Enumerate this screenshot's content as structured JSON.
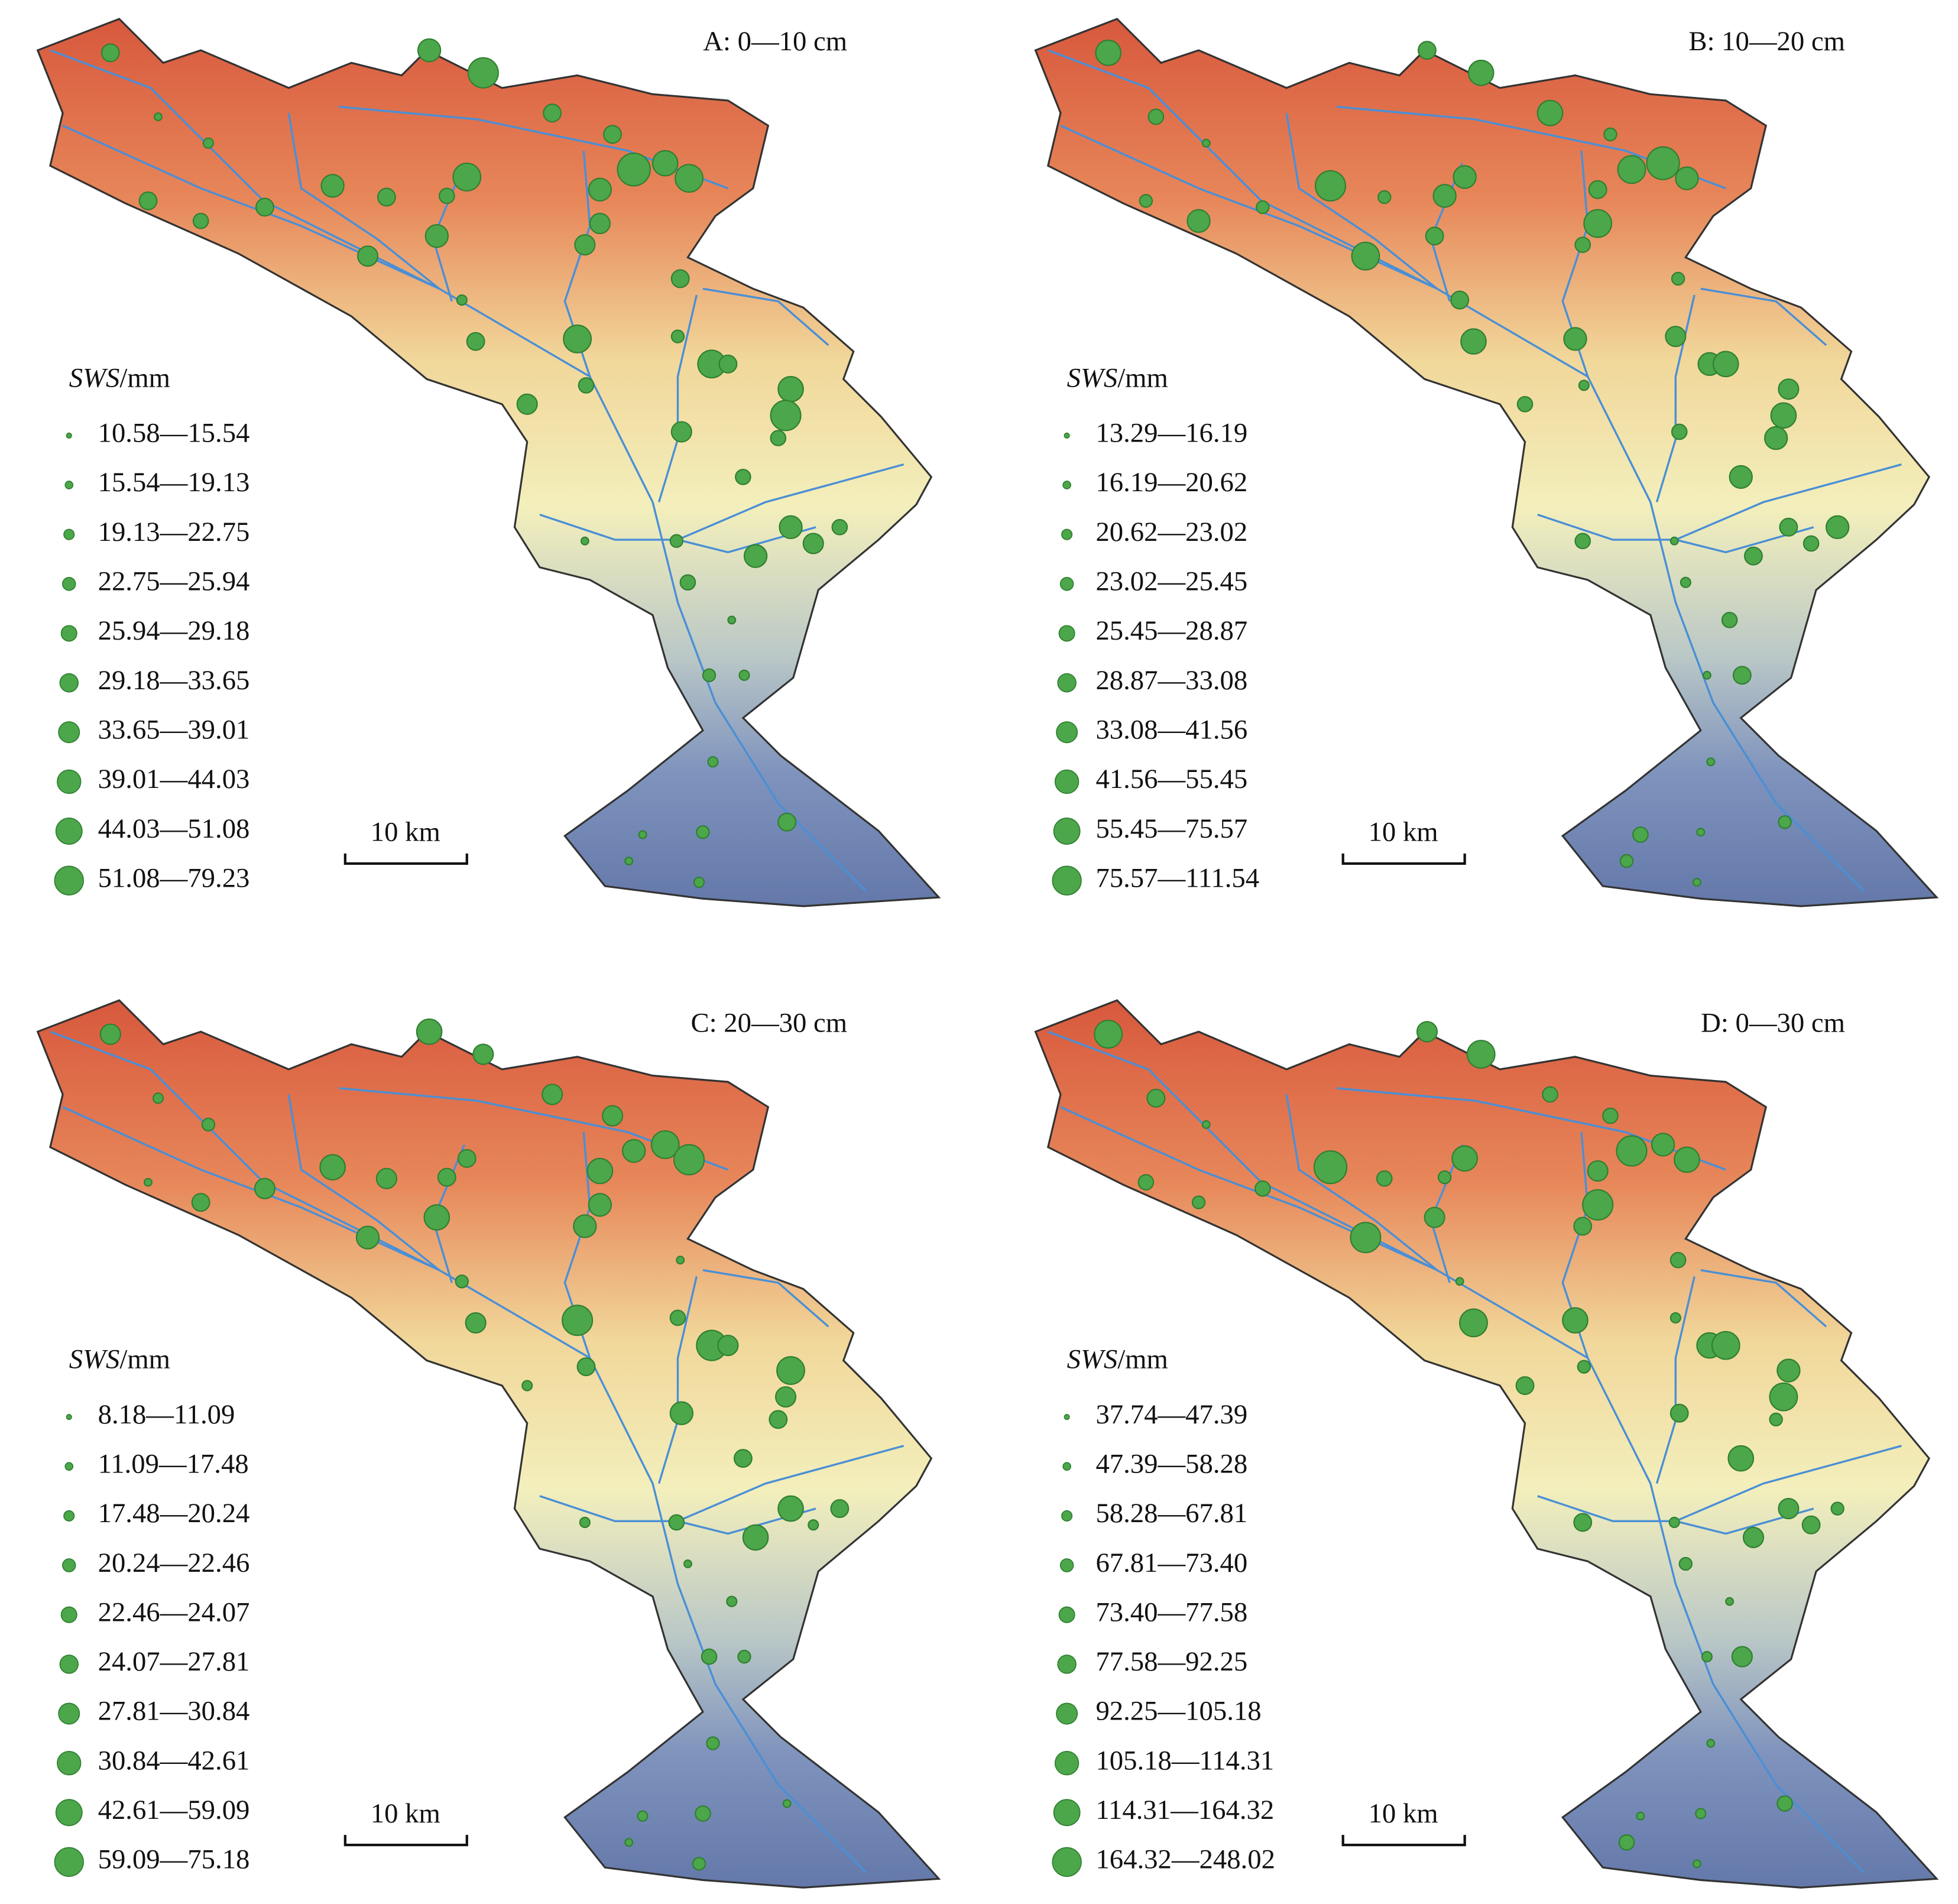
{
  "panels": [
    {
      "title": "A: 0—10 cm",
      "legend_title": [
        "SWS",
        "/mm"
      ],
      "scale_bar": "10 km",
      "classes": [
        "10.58—15.54",
        "15.54—19.13",
        "19.13—22.75",
        "22.75—25.94",
        "25.94—29.18",
        "29.18—33.65",
        "33.65—39.01",
        "39.01—44.03",
        "44.03—51.08",
        "51.08—79.23"
      ]
    },
    {
      "title": "B: 10—20 cm",
      "legend_title": [
        "SWS",
        "/mm"
      ],
      "scale_bar": "10 km",
      "classes": [
        "13.29—16.19",
        "16.19—20.62",
        "20.62—23.02",
        "23.02—25.45",
        "25.45—28.87",
        "28.87—33.08",
        "33.08—41.56",
        "41.56—55.45",
        "55.45—75.57",
        "75.57—111.54"
      ]
    },
    {
      "title": "C: 20—30 cm",
      "legend_title": [
        "SWS",
        "/mm"
      ],
      "scale_bar": "10 km",
      "classes": [
        "8.18—11.09",
        "11.09—17.48",
        "17.48—20.24",
        "20.24—22.46",
        "22.46—24.07",
        "24.07—27.81",
        "27.81—30.84",
        "30.84—42.61",
        "42.61—59.09",
        "59.09—75.18"
      ]
    },
    {
      "title": "D: 0—30 cm",
      "legend_title": [
        "SWS",
        "/mm"
      ],
      "scale_bar": "10 km",
      "classes": [
        "37.74—47.39",
        "47.39—58.28",
        "58.28—67.81",
        "67.81—73.40",
        "73.40—77.58",
        "77.58—92.25",
        "92.25—105.18",
        "105.18—114.31",
        "114.31—164.32",
        "164.32—248.02"
      ]
    }
  ]
}
